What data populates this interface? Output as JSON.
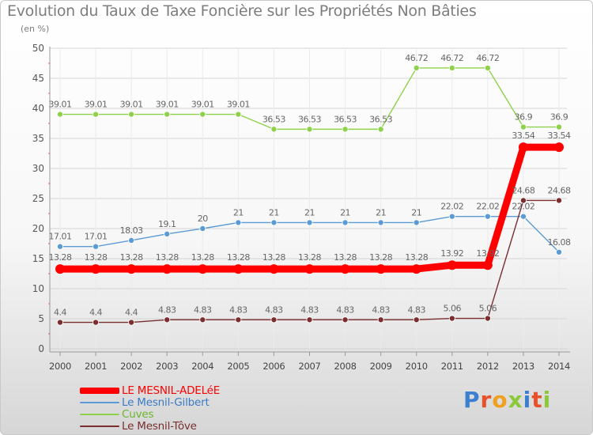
{
  "title": "Evolution du Taux de Taxe Foncière sur les Propriétés Non Bâties",
  "unit": "(en %)",
  "logo_text": "Proxiti",
  "chart_data": {
    "type": "line",
    "title": "Evolution du Taux de Taxe Foncière sur les Propriétés Non Bâties",
    "ylabel": "(en %)",
    "xlabel": "",
    "ylim": [
      0,
      50
    ],
    "yticks": [
      0,
      5,
      10,
      15,
      20,
      25,
      30,
      35,
      40,
      45,
      50
    ],
    "grid": true,
    "legend_position": "bottom-left",
    "categories": [
      "2000",
      "2001",
      "2002",
      "2003",
      "2004",
      "2005",
      "2006",
      "2007",
      "2008",
      "2009",
      "2010",
      "2011",
      "2012",
      "2013",
      "2014"
    ],
    "series": [
      {
        "name": "LE MESNIL-ADELéE",
        "color": "#ff0000",
        "values": [
          13.28,
          13.28,
          13.28,
          13.28,
          13.28,
          13.28,
          13.28,
          13.28,
          13.28,
          13.28,
          13.28,
          13.92,
          13.92,
          33.54,
          33.54
        ],
        "labels": [
          "13.28",
          "13.28",
          "13.28",
          "13.28",
          "13.28",
          "13.28",
          "13.28",
          "13.28",
          "13.28",
          "13.28",
          "13.28",
          "13.92",
          "13.92",
          "33.54",
          "33.54"
        ]
      },
      {
        "name": "Le Mesnil-Gilbert",
        "color": "#5b9bd5",
        "values": [
          17.01,
          17.01,
          18.03,
          19.1,
          20,
          21,
          21,
          21,
          21,
          21,
          21,
          22.02,
          22.02,
          22.02,
          16.08
        ],
        "labels": [
          "17.01",
          "17.01",
          "18.03",
          "19.1",
          "20",
          "21",
          "21",
          "21",
          "21",
          "21",
          "21",
          "22.02",
          "22.02",
          "22.02",
          "16.08"
        ]
      },
      {
        "name": "Cuves",
        "color": "#8ed14a",
        "values": [
          39.01,
          39.01,
          39.01,
          39.01,
          39.01,
          39.01,
          36.53,
          36.53,
          36.53,
          36.53,
          46.72,
          46.72,
          46.72,
          36.9,
          36.9
        ],
        "labels": [
          "39.01",
          "39.01",
          "39.01",
          "39.01",
          "39.01",
          "39.01",
          "36.53",
          "36.53",
          "36.53",
          "36.53",
          "46.72",
          "46.72",
          "46.72",
          "36.9",
          "36.9"
        ]
      },
      {
        "name": "Le Mesnil-Tôve",
        "color": "#7a2e2e",
        "values": [
          4.4,
          4.4,
          4.4,
          4.83,
          4.83,
          4.83,
          4.83,
          4.83,
          4.83,
          4.83,
          4.83,
          5.06,
          5.06,
          24.68,
          24.68
        ],
        "labels": [
          "4.4",
          "4.4",
          "4.4",
          "4.83",
          "4.83",
          "4.83",
          "4.83",
          "4.83",
          "4.83",
          "4.83",
          "4.83",
          "5.06",
          "5.06",
          "24.68",
          "24.68"
        ]
      }
    ]
  }
}
